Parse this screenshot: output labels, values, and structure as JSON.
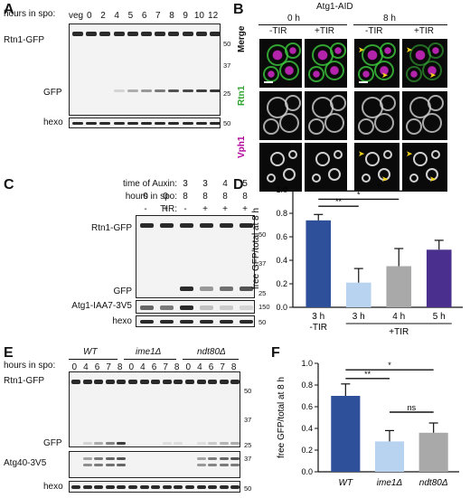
{
  "panels": {
    "A": "A",
    "B": "B",
    "C": "C",
    "D": "D",
    "E": "E",
    "F": "F"
  },
  "panelA": {
    "row_label": "hours in spo:",
    "lanes": [
      "veg",
      "0",
      "2",
      "4",
      "5",
      "6",
      "7",
      "8",
      "9",
      "10",
      "12"
    ],
    "blot1_labels": [
      "Rtn1-GFP",
      "GFP"
    ],
    "blot2_label": "hexo",
    "mw": [
      "50",
      "37",
      "25",
      "50"
    ]
  },
  "panelB": {
    "title": "Atg1-AID",
    "time_labels": [
      "0 h",
      "8 h"
    ],
    "cond_labels": [
      "-TIR",
      "+TIR",
      "-TIR",
      "+TIR"
    ],
    "row_labels": [
      "Merge",
      "Rtn1",
      "Vph1"
    ],
    "arrow_glyph": "➤"
  },
  "panelC": {
    "row_labels": [
      "time of Auxin:",
      "hours in spo:",
      "TIR:"
    ],
    "auxin": [
      "",
      "",
      "3",
      "3",
      "4",
      "5"
    ],
    "hours": [
      "0",
      "0",
      "8",
      "8",
      "8",
      "8"
    ],
    "tir": [
      "-",
      "+",
      "-",
      "+",
      "+",
      "+"
    ],
    "blot_labels": [
      "Rtn1-GFP",
      "GFP",
      "Atg1-IAA7-3V5",
      "hexo"
    ],
    "mw": [
      "50",
      "37",
      "25",
      "150",
      "50"
    ]
  },
  "panelD": {
    "ylabel": "free GFP/total at 8 h",
    "yticks": [
      "0.0",
      "0.2",
      "0.4",
      "0.6",
      "0.8",
      "1.0"
    ],
    "categories": [
      "3 h",
      "3 h",
      "4 h",
      "5 h"
    ],
    "subcat": [
      "-TIR",
      "+TIR"
    ],
    "sig": [
      "**",
      "*",
      "*"
    ]
  },
  "panelE": {
    "group_labels": [
      "WT",
      "ime1Δ",
      "ndt80Δ"
    ],
    "row_label": "hours in spo:",
    "lanes": [
      "0",
      "4",
      "6",
      "7",
      "8",
      "0",
      "4",
      "6",
      "7",
      "8",
      "0",
      "4",
      "6",
      "7",
      "8"
    ],
    "blot_labels": [
      "Rtn1-GFP",
      "GFP",
      "Atg40-3V5",
      "hexo"
    ],
    "mw": [
      "50",
      "37",
      "25",
      "37",
      "50"
    ]
  },
  "panelF": {
    "ylabel": "free GFP/total at 8 h",
    "yticks": [
      "0.0",
      "0.2",
      "0.4",
      "0.6",
      "0.8",
      "1.0"
    ],
    "categories": [
      "WT",
      "ime1Δ",
      "ndt80Δ"
    ],
    "sig": [
      "**",
      "*",
      "ns"
    ]
  },
  "chart_data": [
    {
      "type": "bar",
      "categories": [
        "3 h -TIR",
        "3 h +TIR",
        "4 h +TIR",
        "5 h +TIR"
      ],
      "values": [
        0.74,
        0.21,
        0.35,
        0.49
      ],
      "errors": [
        0.05,
        0.12,
        0.15,
        0.08
      ],
      "colors": [
        "#2e4f9a",
        "#b7d3f0",
        "#a9a9a9",
        "#4a2f8f"
      ],
      "xlabel": "",
      "ylabel": "free GFP/total at 8 h",
      "ylim": [
        0,
        1.0
      ],
      "annotations": [
        "**",
        "*",
        "*"
      ]
    },
    {
      "type": "bar",
      "categories": [
        "WT",
        "ime1Δ",
        "ndt80Δ"
      ],
      "values": [
        0.7,
        0.28,
        0.36
      ],
      "errors": [
        0.11,
        0.1,
        0.09
      ],
      "colors": [
        "#2e4f9a",
        "#b7d3f0",
        "#a9a9a9"
      ],
      "xlabel": "",
      "ylabel": "free GFP/total at 8 h",
      "ylim": [
        0,
        1.0
      ],
      "annotations": [
        "**",
        "*",
        "ns"
      ]
    }
  ]
}
